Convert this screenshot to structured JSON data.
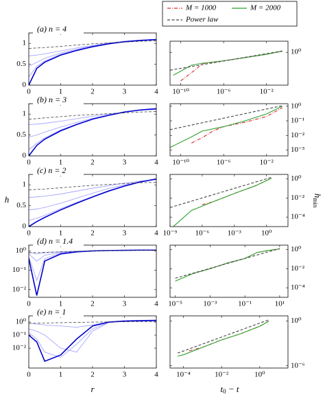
{
  "legend": [
    {
      "name": "M = 1000",
      "color": "#d62728",
      "dash": "dashdot"
    },
    {
      "name": "M = 2000",
      "color": "#2ca02c",
      "dash": "solid"
    },
    {
      "name": "Power law",
      "color": "#444444",
      "dash": "dashed"
    }
  ],
  "xlabel_left": "r",
  "ylabel_left": "h",
  "ylabel_right": {
    "main": "h",
    "sub": "min"
  },
  "xlabel_right": {
    "main": "t",
    "sub": "0",
    "rest": " − t"
  },
  "chart_data": [
    {
      "type": "line",
      "title": "(a) n = 4",
      "log_x": false,
      "log_y": false,
      "xlim": [
        0,
        4
      ],
      "ylim": [
        0,
        1.25
      ],
      "xticks": [
        0,
        1,
        2,
        3,
        4
      ],
      "yticks": [
        0,
        0.5,
        1
      ],
      "x": [
        0,
        0.25,
        0.5,
        1,
        1.5,
        2,
        2.5,
        3,
        3.5,
        4
      ],
      "series": [
        {
          "color": "#9a9aff",
          "values": [
            0.7,
            0.72,
            0.75,
            0.82,
            0.89,
            0.95,
            1.01,
            1.05,
            1.08,
            1.1
          ]
        },
        {
          "color": "#9a9aff",
          "values": [
            0.45,
            0.55,
            0.64,
            0.77,
            0.86,
            0.94,
            1.0,
            1.05,
            1.08,
            1.1
          ]
        },
        {
          "color": "#9a9aff",
          "values": [
            0.2,
            0.45,
            0.58,
            0.74,
            0.84,
            0.93,
            1.0,
            1.05,
            1.08,
            1.1
          ]
        },
        {
          "color": "#0000cc",
          "values": [
            0,
            0.4,
            0.55,
            0.72,
            0.83,
            0.92,
            0.99,
            1.04,
            1.07,
            1.09
          ]
        },
        {
          "color": "#444444",
          "dash": "dashed",
          "values": [
            0.88,
            0.89,
            0.9,
            0.93,
            0.96,
            0.99,
            1.01,
            1.03,
            1.05,
            1.06
          ]
        }
      ]
    },
    {
      "type": "line",
      "title": "(b) n = 3",
      "log_x": false,
      "log_y": false,
      "xlim": [
        0,
        4
      ],
      "ylim": [
        0,
        1.25
      ],
      "xticks": [
        0,
        1,
        2,
        3,
        4
      ],
      "yticks": [
        0,
        0.5,
        1
      ],
      "x": [
        0,
        0.25,
        0.5,
        1,
        1.5,
        2,
        2.5,
        3,
        3.5,
        4
      ],
      "series": [
        {
          "color": "#9a9aff",
          "values": [
            0.75,
            0.76,
            0.78,
            0.83,
            0.89,
            0.95,
            1.0,
            1.05,
            1.09,
            1.11
          ]
        },
        {
          "color": "#9a9aff",
          "values": [
            0.45,
            0.5,
            0.57,
            0.69,
            0.8,
            0.9,
            0.98,
            1.05,
            1.1,
            1.12
          ]
        },
        {
          "color": "#9a9aff",
          "values": [
            0.15,
            0.3,
            0.43,
            0.62,
            0.76,
            0.88,
            0.97,
            1.05,
            1.1,
            1.13
          ]
        },
        {
          "color": "#0000cc",
          "values": [
            0,
            0.25,
            0.4,
            0.6,
            0.75,
            0.88,
            0.97,
            1.05,
            1.1,
            1.13
          ]
        },
        {
          "color": "#444444",
          "dash": "dashed",
          "values": [
            0.88,
            0.89,
            0.91,
            0.94,
            0.97,
            0.99,
            1.01,
            1.03,
            1.05,
            1.06
          ]
        }
      ]
    },
    {
      "type": "line",
      "title": "(c) n = 2",
      "log_x": false,
      "log_y": false,
      "xlim": [
        0,
        4
      ],
      "ylim": [
        0,
        1.25
      ],
      "xticks": [
        0,
        1,
        2,
        3,
        4
      ],
      "yticks": [
        0,
        0.5,
        1
      ],
      "x": [
        0,
        0.25,
        0.5,
        1,
        1.5,
        2,
        2.5,
        3,
        3.5,
        4
      ],
      "series": [
        {
          "color": "#9a9aff",
          "values": [
            0.7,
            0.71,
            0.73,
            0.78,
            0.85,
            0.92,
            0.98,
            1.04,
            1.09,
            1.12
          ]
        },
        {
          "color": "#9a9aff",
          "values": [
            0.4,
            0.42,
            0.46,
            0.56,
            0.68,
            0.8,
            0.91,
            1.0,
            1.08,
            1.13
          ]
        },
        {
          "color": "#9a9aff",
          "values": [
            0.15,
            0.2,
            0.27,
            0.43,
            0.58,
            0.72,
            0.86,
            0.98,
            1.07,
            1.14
          ]
        },
        {
          "color": "#0000cc",
          "values": [
            0,
            0.12,
            0.22,
            0.4,
            0.56,
            0.71,
            0.85,
            0.97,
            1.07,
            1.14
          ]
        },
        {
          "color": "#444444",
          "dash": "dashed",
          "values": [
            0.88,
            0.89,
            0.9,
            0.93,
            0.96,
            0.99,
            1.01,
            1.03,
            1.05,
            1.06
          ]
        }
      ]
    },
    {
      "type": "line",
      "title": "(d) n = 1.4",
      "log_x": false,
      "log_y": true,
      "xlim": [
        0,
        4
      ],
      "ylim": [
        0.004,
        2
      ],
      "xticks": [
        0,
        1,
        2,
        3,
        4
      ],
      "yticks": [
        {
          "value": 1,
          "label": "10⁰"
        },
        {
          "value": 0.1,
          "label": "10⁻¹"
        },
        {
          "value": 0.01,
          "label": "10⁻²"
        }
      ],
      "x": [
        0,
        0.25,
        0.5,
        1,
        1.5,
        2,
        2.5,
        3,
        3.5,
        4
      ],
      "series": [
        {
          "color": "#9a9aff",
          "values": [
            0.9,
            0.7,
            0.8,
            0.92,
            0.98,
            1.03,
            1.06,
            1.08,
            1.1,
            1.1
          ]
        },
        {
          "color": "#9a9aff",
          "values": [
            0.7,
            0.3,
            0.6,
            0.85,
            0.95,
            1.02,
            1.06,
            1.08,
            1.1,
            1.1
          ]
        },
        {
          "color": "#9a9aff",
          "values": [
            0.5,
            0.03,
            0.4,
            0.78,
            0.92,
            1.0,
            1.05,
            1.08,
            1.1,
            1.1
          ]
        },
        {
          "color": "#0000cc",
          "values": [
            0.4,
            0.005,
            0.3,
            0.7,
            0.9,
            1.0,
            1.05,
            1.08,
            1.1,
            1.1
          ]
        },
        {
          "color": "#444444",
          "dash": "dashed",
          "values": [
            0.8,
            0.82,
            0.85,
            0.9,
            0.95,
            1.0,
            1.03,
            1.06,
            1.08,
            1.1
          ]
        }
      ]
    },
    {
      "type": "line",
      "title": "(e) n = 1",
      "log_x": false,
      "log_y": true,
      "xlim": [
        0,
        4
      ],
      "ylim": [
        0.0003,
        3
      ],
      "xticks": [
        0,
        1,
        2,
        3,
        4
      ],
      "yticks": [
        {
          "value": 1,
          "label": "10⁰"
        },
        {
          "value": 0.1,
          "label": "10⁻¹"
        },
        {
          "value": 0.01,
          "label": "10⁻²"
        }
      ],
      "x": [
        0,
        0.25,
        0.5,
        1,
        1.5,
        2,
        2.5,
        3,
        3.5,
        4
      ],
      "series": [
        {
          "color": "#9a9aff",
          "values": [
            0.8,
            0.7,
            0.6,
            0.5,
            0.4,
            0.6,
            1.0,
            1.1,
            1.15,
            1.2
          ]
        },
        {
          "color": "#9a9aff",
          "values": [
            0.3,
            0.2,
            0.1,
            0.01,
            0.005,
            0.2,
            0.9,
            1.15,
            1.25,
            1.3
          ]
        },
        {
          "color": "#9a9aff",
          "values": [
            0.15,
            0.05,
            0.005,
            0.002,
            0.02,
            0.3,
            0.95,
            1.2,
            1.3,
            1.35
          ]
        },
        {
          "color": "#0000cc",
          "values": [
            0.1,
            0.03,
            0.001,
            0.003,
            0.05,
            0.5,
            1.0,
            1.2,
            1.3,
            1.35
          ]
        },
        {
          "color": "#444444",
          "dash": "dashed",
          "values": [
            0.8,
            0.82,
            0.85,
            0.9,
            0.95,
            1.0,
            1.03,
            1.06,
            1.08,
            1.1
          ]
        }
      ]
    },
    {
      "type": "line",
      "log_x": true,
      "log_y": true,
      "xlim": [
        1e-11,
        1
      ],
      "ylim": [
        0.25,
        1.6
      ],
      "xticks": [
        {
          "value": 1e-10,
          "label": "10⁻¹⁰"
        },
        {
          "value": 1e-06,
          "label": "10⁻⁶"
        },
        {
          "value": 0.01,
          "label": "10⁻²"
        }
      ],
      "yticks": [
        {
          "value": 1,
          "label": "10⁰"
        }
      ],
      "series": [
        {
          "name": "M = 1000",
          "color": "#d62728",
          "dash": "dashdot",
          "x": [
            1e-10,
            3e-09,
            1e-08,
            1e-06,
            0.0001,
            0.01,
            0.3
          ],
          "values": [
            0.3,
            0.5,
            0.62,
            0.7,
            0.8,
            0.92,
            1.05
          ]
        },
        {
          "name": "M = 2000",
          "color": "#2ca02c",
          "x": [
            2e-11,
            1e-09,
            1e-08,
            1e-06,
            0.0001,
            0.01,
            0.3
          ],
          "values": [
            0.38,
            0.58,
            0.63,
            0.7,
            0.8,
            0.92,
            1.05
          ]
        },
        {
          "name": "Power law",
          "color": "#444444",
          "dash": "dashed",
          "x": [
            1e-11,
            0.3
          ],
          "values": [
            0.47,
            1.06
          ]
        }
      ]
    },
    {
      "type": "line",
      "log_x": true,
      "log_y": true,
      "xlim": [
        1e-11,
        1
      ],
      "ylim": [
        0.0004,
        1.5
      ],
      "xticks": [
        {
          "value": 1e-10,
          "label": "10⁻¹⁰"
        },
        {
          "value": 1e-06,
          "label": "10⁻⁶"
        },
        {
          "value": 0.01,
          "label": "10⁻²"
        }
      ],
      "yticks": [
        {
          "value": 1,
          "label": "10⁰"
        },
        {
          "value": 0.1,
          "label": "10⁻¹"
        },
        {
          "value": 0.01,
          "label": "10⁻²"
        },
        {
          "value": 0.001,
          "label": "10⁻³"
        }
      ],
      "series": [
        {
          "name": "M = 1000",
          "color": "#d62728",
          "dash": "dashdot",
          "x": [
            1e-09,
            1e-08,
            1e-07,
            1e-06,
            0.0001,
            0.01,
            0.3
          ],
          "values": [
            0.003,
            0.007,
            0.02,
            0.04,
            0.08,
            0.2,
            0.8
          ]
        },
        {
          "name": "M = 2000",
          "color": "#2ca02c",
          "x": [
            1e-11,
            1e-09,
            1e-08,
            1e-06,
            0.0001,
            0.01,
            0.3
          ],
          "values": [
            0.0015,
            0.008,
            0.02,
            0.04,
            0.1,
            0.3,
            1.0
          ]
        },
        {
          "name": "Power law",
          "color": "#444444",
          "dash": "dashed",
          "x": [
            1e-11,
            0.3
          ],
          "values": [
            0.025,
            1.1
          ]
        }
      ]
    },
    {
      "type": "line",
      "log_x": true,
      "log_y": true,
      "xlim": [
        1e-09,
        100
      ],
      "ylim": [
        1e-05,
        3
      ],
      "xticks": [
        {
          "value": 1e-09,
          "label": "10⁻⁹"
        },
        {
          "value": 1e-06,
          "label": "10⁻⁶"
        },
        {
          "value": 0.001,
          "label": "10⁻³"
        },
        {
          "value": 1,
          "label": "10⁰"
        }
      ],
      "yticks": [
        {
          "value": 1,
          "label": "10⁰"
        },
        {
          "value": 0.01,
          "label": "10⁻²"
        },
        {
          "value": 0.0001,
          "label": "10⁻⁴"
        }
      ],
      "series": [
        {
          "name": "M = 1000",
          "color": "#d62728",
          "dash": "dashdot",
          "x": [
            1e-06,
            1e-05,
            0.001,
            0.1,
            3
          ],
          "values": [
            0.002,
            0.004,
            0.03,
            0.2,
            1.2
          ]
        },
        {
          "name": "M = 2000",
          "color": "#2ca02c",
          "x": [
            2e-09,
            1e-07,
            1e-05,
            0.001,
            0.1,
            3
          ],
          "values": [
            1e-05,
            0.0005,
            0.004,
            0.03,
            0.2,
            1.2
          ]
        },
        {
          "name": "Power law",
          "color": "#444444",
          "dash": "dashed",
          "x": [
            1e-09,
            3
          ],
          "values": [
            0.001,
            1.5
          ]
        }
      ]
    },
    {
      "type": "line",
      "log_x": true,
      "log_y": true,
      "xlim": [
        5e-06,
        30
      ],
      "ylim": [
        1e-05,
        3
      ],
      "xticks": [
        {
          "value": 1e-05,
          "label": "10⁻⁵"
        },
        {
          "value": 0.001,
          "label": "10⁻³"
        },
        {
          "value": 0.1,
          "label": "10⁻¹"
        },
        {
          "value": 10,
          "label": "10¹"
        }
      ],
      "yticks": [
        {
          "value": 1,
          "label": "10⁰"
        },
        {
          "value": 0.01,
          "label": "10⁻²"
        },
        {
          "value": 0.0001,
          "label": "10⁻⁴"
        }
      ],
      "series": [
        {
          "name": "M = 1000",
          "color": "#d62728",
          "dash": "dashdot",
          "x": [
            0.0001,
            0.001,
            0.01,
            0.1,
            0.5,
            2,
            10
          ],
          "values": [
            0.003,
            0.01,
            0.04,
            0.12,
            0.5,
            0.8,
            1.2
          ]
        },
        {
          "name": "M = 2000",
          "color": "#2ca02c",
          "x": [
            1e-05,
            0.0001,
            0.001,
            0.01,
            0.1,
            0.5,
            2,
            10
          ],
          "values": [
            0.0005,
            0.003,
            0.01,
            0.04,
            0.12,
            0.5,
            0.8,
            1.2
          ]
        },
        {
          "name": "Power law",
          "color": "#444444",
          "dash": "dashed",
          "x": [
            1e-05,
            10
          ],
          "values": [
            0.001,
            1.3
          ]
        }
      ]
    },
    {
      "type": "line",
      "log_x": true,
      "log_y": true,
      "xlim": [
        2e-05,
        30
      ],
      "ylim": [
        5e-07,
        5
      ],
      "xticks": [
        {
          "value": 0.0001,
          "label": "10⁻⁴"
        },
        {
          "value": 0.01,
          "label": "10⁻²"
        },
        {
          "value": 1,
          "label": "10⁰"
        }
      ],
      "yticks": [
        {
          "value": 1,
          "label": "10⁰"
        },
        {
          "value": 1e-06,
          "label": "10⁻⁶"
        }
      ],
      "series": [
        {
          "name": "M = 1000",
          "color": "#d62728",
          "dash": "dashdot",
          "x": [
            0.0002,
            0.001,
            0.01,
            0.1,
            1,
            3
          ],
          "values": [
            0.0001,
            0.0003,
            0.003,
            0.02,
            0.2,
            1
          ]
        },
        {
          "name": "M = 2000",
          "color": "#2ca02c",
          "x": [
            5e-05,
            0.0001,
            0.001,
            0.01,
            0.1,
            1,
            3
          ],
          "values": [
            2e-05,
            3e-05,
            0.0003,
            0.003,
            0.02,
            0.2,
            1
          ]
        },
        {
          "name": "Power law",
          "color": "#444444",
          "dash": "dashed",
          "x": [
            5e-05,
            3
          ],
          "values": [
            5e-05,
            1.5
          ]
        }
      ]
    }
  ]
}
